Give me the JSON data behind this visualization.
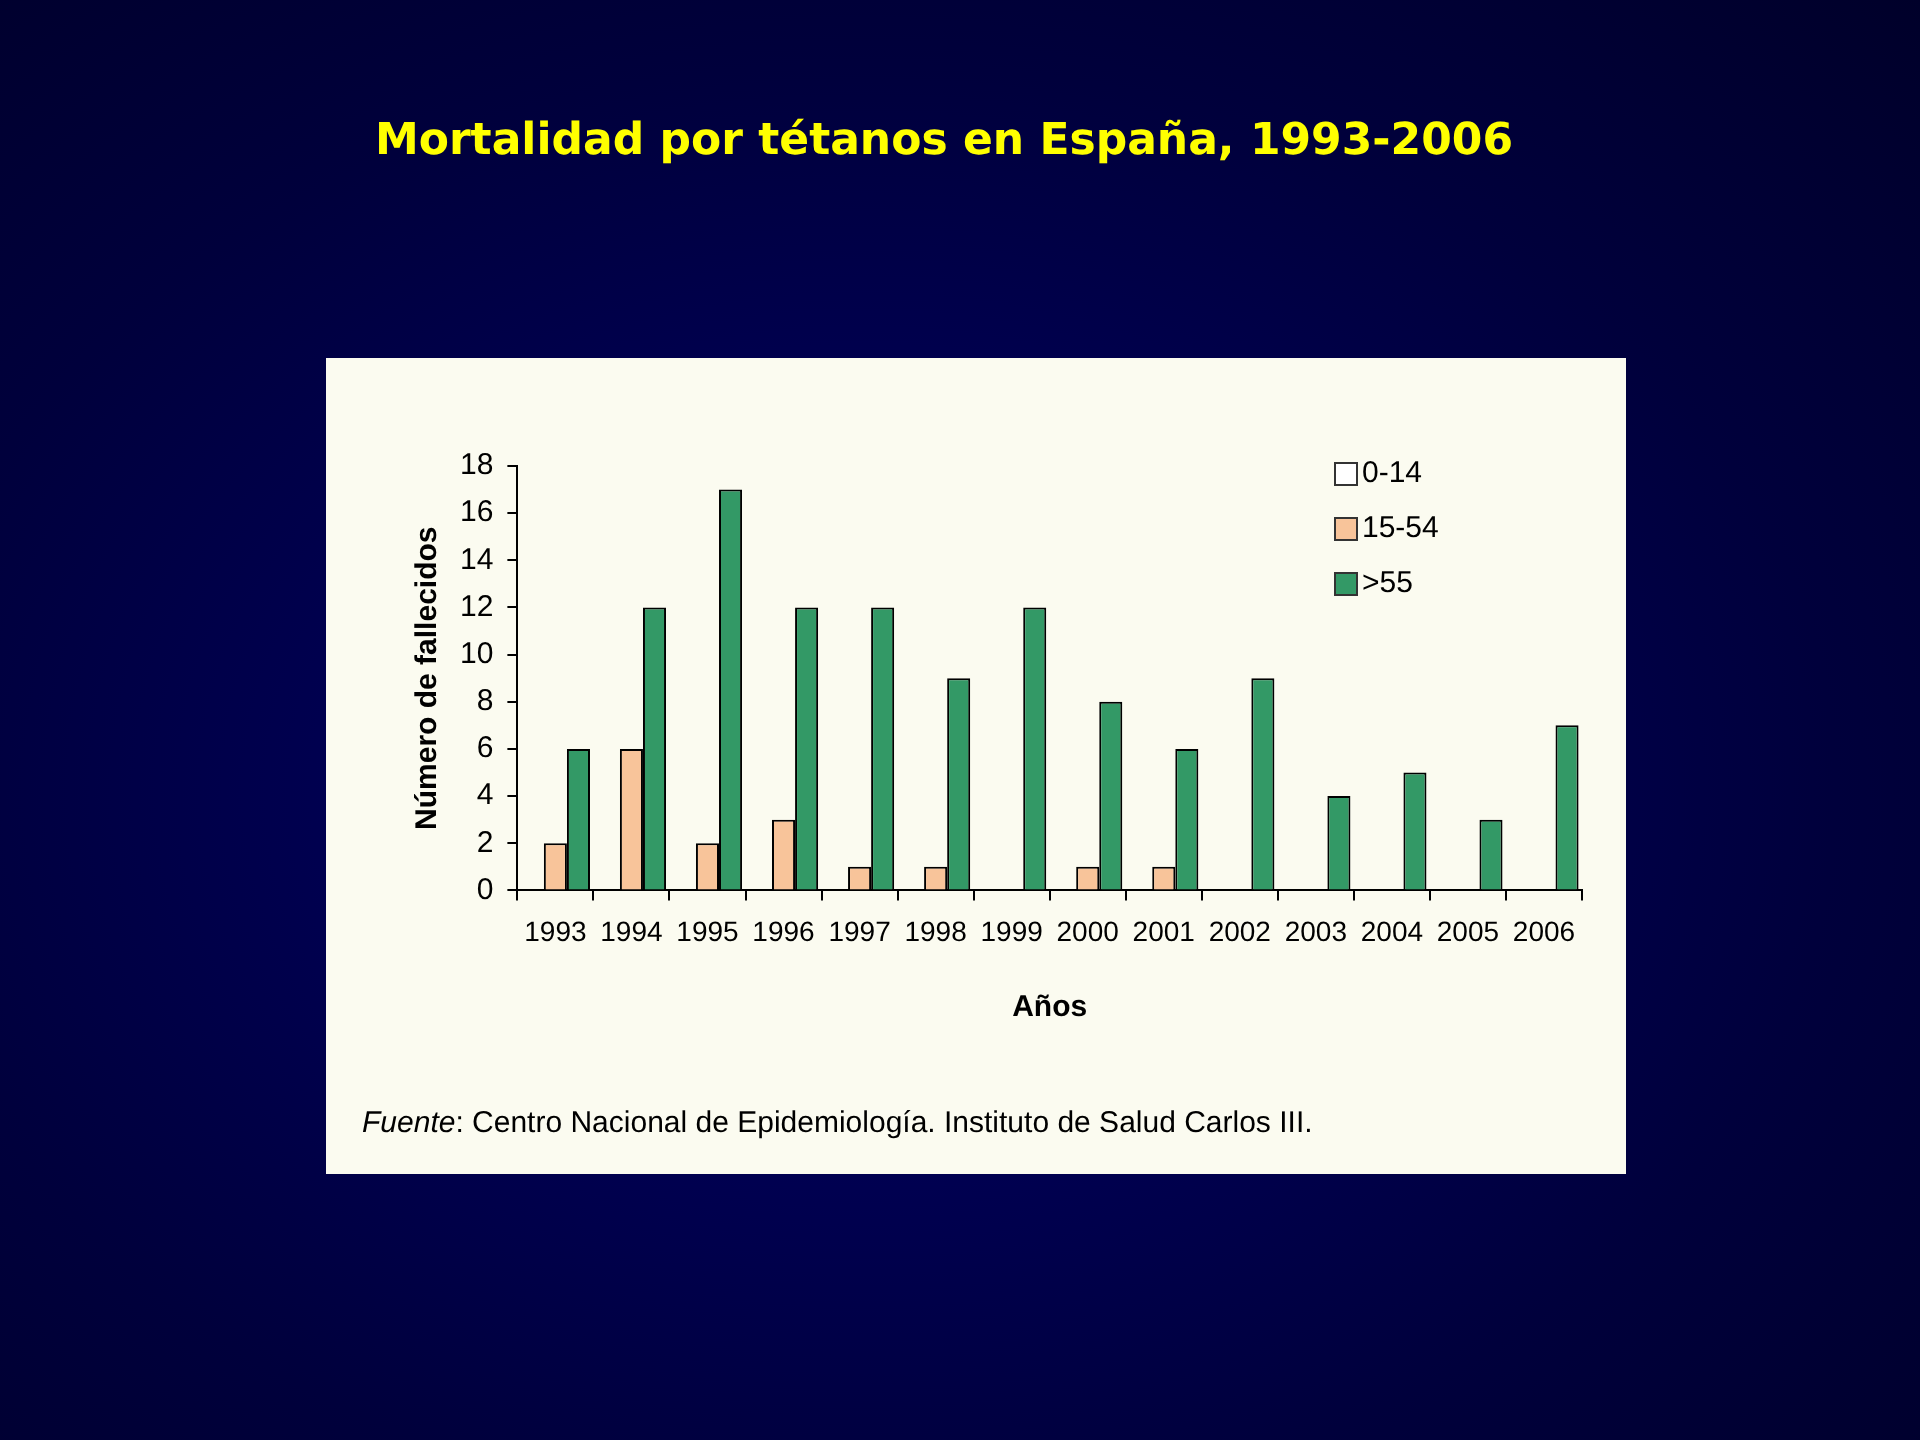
{
  "chart_data": {
    "type": "bar",
    "title": "Mortalidad por tétanos en España, 1993-2006",
    "xlabel": "Años",
    "ylabel": "Número de fallecidos",
    "annotations": [
      "Fuente: Centro Nacional de Epidemiología. Instituto de Salud Carlos III."
    ],
    "categories": [
      "1993",
      "1994",
      "1995",
      "1996",
      "1997",
      "1998",
      "1999",
      "2000",
      "2001",
      "2002",
      "2003",
      "2004",
      "2005",
      "2006"
    ],
    "series": [
      {
        "name": "0-14",
        "color": "#ffffff",
        "values": [
          0,
          0,
          0,
          0,
          0,
          0,
          0,
          0,
          0,
          0,
          0,
          0,
          0,
          0
        ]
      },
      {
        "name": "15-54",
        "color": "#f8c49a",
        "values": [
          2,
          6,
          2,
          3,
          1,
          1,
          0,
          1,
          1,
          0,
          0,
          0,
          0,
          0
        ]
      },
      {
        "name": ">55",
        "color": "#339966",
        "values": [
          6,
          12,
          17,
          12,
          12,
          9,
          12,
          8,
          6,
          9,
          4,
          5,
          3,
          7
        ]
      }
    ],
    "ylim": [
      0,
      18
    ],
    "yticks": [
      0,
      2,
      4,
      6,
      8,
      10,
      12,
      14,
      16,
      18
    ],
    "grid": false,
    "legend": "top right"
  }
}
